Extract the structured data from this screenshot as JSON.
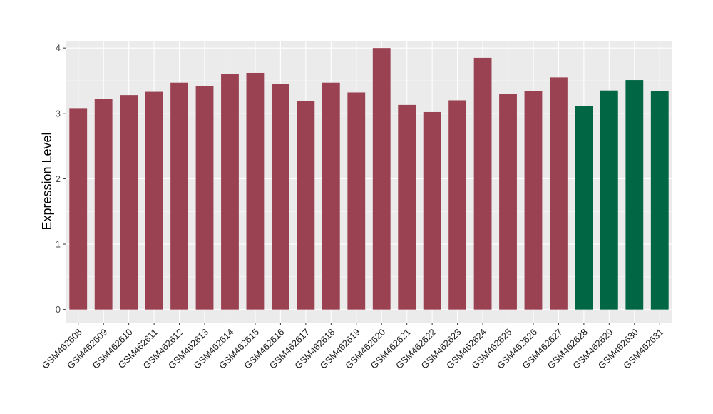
{
  "chart_data": {
    "type": "bar",
    "title": "",
    "xlabel": "",
    "ylabel": "Expression Level",
    "ylim": [
      -0.2,
      4.1
    ],
    "yticks": [
      0,
      1,
      2,
      3,
      4
    ],
    "grid": true,
    "legend": "none",
    "categories": [
      "GSM462608",
      "GSM462609",
      "GSM462610",
      "GSM462611",
      "GSM462612",
      "GSM462613",
      "GSM462614",
      "GSM462615",
      "GSM462616",
      "GSM462617",
      "GSM462618",
      "GSM462619",
      "GSM462620",
      "GSM462621",
      "GSM462622",
      "GSM462623",
      "GSM462624",
      "GSM462625",
      "GSM462626",
      "GSM462627",
      "GSM462628",
      "GSM462629",
      "GSM462630",
      "GSM462631"
    ],
    "values": [
      3.07,
      3.22,
      3.28,
      3.33,
      3.47,
      3.42,
      3.6,
      3.62,
      3.45,
      3.19,
      3.47,
      3.32,
      4.0,
      3.13,
      3.02,
      3.2,
      3.85,
      3.3,
      3.34,
      3.55,
      3.11,
      3.35,
      3.51,
      3.34
    ],
    "bar_colors": [
      "#9a4152",
      "#9a4152",
      "#9a4152",
      "#9a4152",
      "#9a4152",
      "#9a4152",
      "#9a4152",
      "#9a4152",
      "#9a4152",
      "#9a4152",
      "#9a4152",
      "#9a4152",
      "#9a4152",
      "#9a4152",
      "#9a4152",
      "#9a4152",
      "#9a4152",
      "#9a4152",
      "#9a4152",
      "#9a4152",
      "#006644",
      "#006644",
      "#006644",
      "#006644"
    ],
    "panel_background": "#ebebeb",
    "grid_color": "#ffffff"
  }
}
